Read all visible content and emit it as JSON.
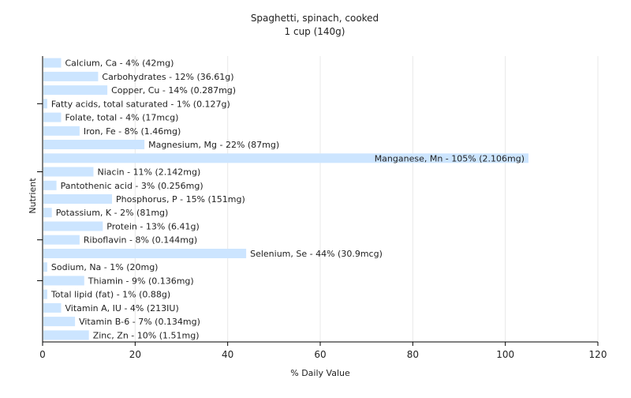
{
  "chart_data": {
    "type": "bar",
    "orientation": "horizontal",
    "title": "Spaghetti, spinach, cooked",
    "subtitle": "1 cup (140g)",
    "xlabel": "% Daily Value",
    "ylabel": "Nutrient",
    "xlim": [
      0,
      120
    ],
    "xticks": [
      0,
      20,
      40,
      60,
      80,
      100,
      120
    ],
    "grid": "vertical",
    "bar_color": "#cce5ff",
    "categories": [
      "Calcium, Ca",
      "Carbohydrates",
      "Copper, Cu",
      "Fatty acids, total saturated",
      "Folate, total",
      "Iron, Fe",
      "Magnesium, Mg",
      "Manganese, Mn",
      "Niacin",
      "Pantothenic acid",
      "Phosphorus, P",
      "Potassium, K",
      "Protein",
      "Riboflavin",
      "Selenium, Se",
      "Sodium, Na",
      "Thiamin",
      "Total lipid (fat)",
      "Vitamin A, IU",
      "Vitamin B-6",
      "Zinc, Zn"
    ],
    "values": [
      4,
      12,
      14,
      1,
      4,
      8,
      22,
      105,
      11,
      3,
      15,
      2,
      13,
      8,
      44,
      1,
      9,
      1,
      4,
      7,
      10
    ],
    "labels": [
      "Calcium, Ca - 4% (42mg)",
      "Carbohydrates - 12% (36.61g)",
      "Copper, Cu - 14% (0.287mg)",
      "Fatty acids, total saturated - 1% (0.127g)",
      "Folate, total - 4% (17mcg)",
      "Iron, Fe - 8% (1.46mg)",
      "Magnesium, Mg - 22% (87mg)",
      "Manganese, Mn - 105% (2.106mg)",
      "Niacin - 11% (2.142mg)",
      "Pantothenic acid - 3% (0.256mg)",
      "Phosphorus, P - 15% (151mg)",
      "Potassium, K - 2% (81mg)",
      "Protein - 13% (6.41g)",
      "Riboflavin - 8% (0.144mg)",
      "Selenium, Se - 44% (30.9mcg)",
      "Sodium, Na - 1% (20mg)",
      "Thiamin - 9% (0.136mg)",
      "Total lipid (fat) - 1% (0.88g)",
      "Vitamin A, IU - 4% (213IU)",
      "Vitamin B-6 - 7% (0.134mg)",
      "Zinc, Zn - 10% (1.51mg)"
    ]
  }
}
